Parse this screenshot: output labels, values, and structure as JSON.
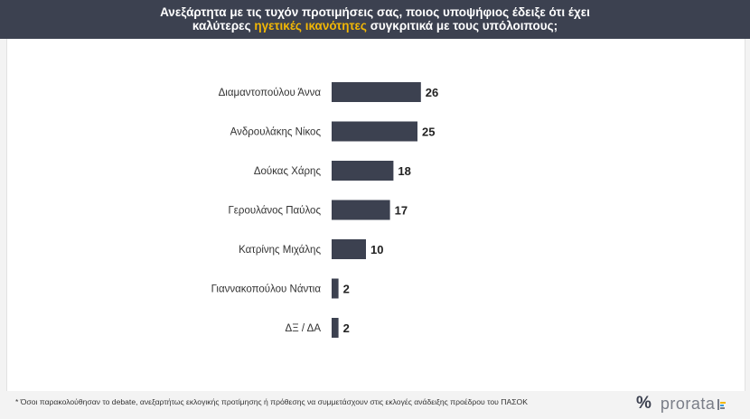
{
  "header": {
    "line1": "Ανεξάρτητα με τις τυχόν προτιμήσεις σας, ποιος υποψήφιος έδειξε ότι έχει",
    "line2_before": "καλύτερες ",
    "line2_highlight": "ηγετικές ικανότητες",
    "line2_after": " συγκριτικά με τους υπόλοιπους;"
  },
  "chart_data": {
    "type": "bar",
    "orientation": "horizontal",
    "categories": [
      "Διαμαντοπούλου Άννα",
      "Ανδρουλάκης Νίκος",
      "Δούκας Χάρης",
      "Γερουλάνος Παύλος",
      "Κατρίνης Μιχάλης",
      "Γιαννακοπούλου Νάντια",
      "ΔΞ / ΔΑ"
    ],
    "values": [
      26,
      25,
      18,
      17,
      10,
      2,
      2
    ],
    "title": "",
    "xlabel": "",
    "ylabel": "",
    "xlim": [
      0,
      100
    ],
    "grid": false,
    "legend": "none",
    "bar_color": "#3c4150"
  },
  "footer": {
    "note": "* Όσοι παρακολούθησαν το debate, ανεξαρτήτως εκλογικής προτίμησης ή πρόθεσης να συμμετάσχουν στις εκλογές ανάδειξης προέδρου του ΠΑΣΟΚ"
  },
  "brand": {
    "symbol": "%",
    "name": "prorata",
    "colors": [
      "#f2b705",
      "#3a9ad9",
      "#7a7e88"
    ]
  }
}
